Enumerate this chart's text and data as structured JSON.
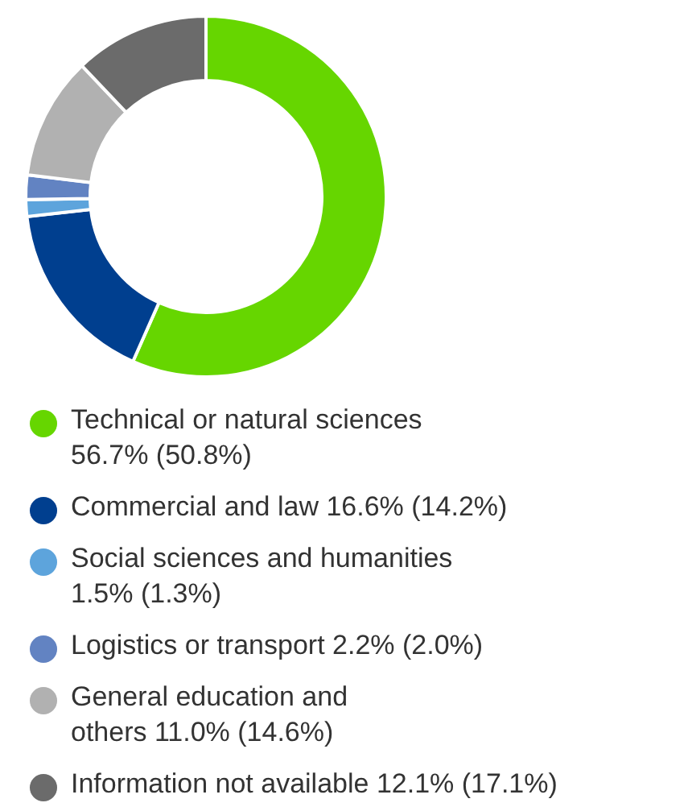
{
  "chart_data": {
    "type": "donut",
    "categories": [
      "Technical or natural sciences\n56.7% (50.8%)",
      "Commercial and law 16.6% (14.2%)",
      "Social sciences and humanities\n1.5% (1.3%)",
      "Logistics or transport 2.2% (2.0%)",
      "General education and\nothers 11.0% (14.6%)",
      "Information not available 12.1% (17.1%)"
    ],
    "values": [
      56.7,
      16.6,
      1.5,
      2.2,
      11.0,
      12.1
    ],
    "colors": [
      "#66d600",
      "#003f8f",
      "#5da4dc",
      "#6283c2",
      "#b1b1b1",
      "#6b6b6b"
    ],
    "legend": "bottom"
  }
}
